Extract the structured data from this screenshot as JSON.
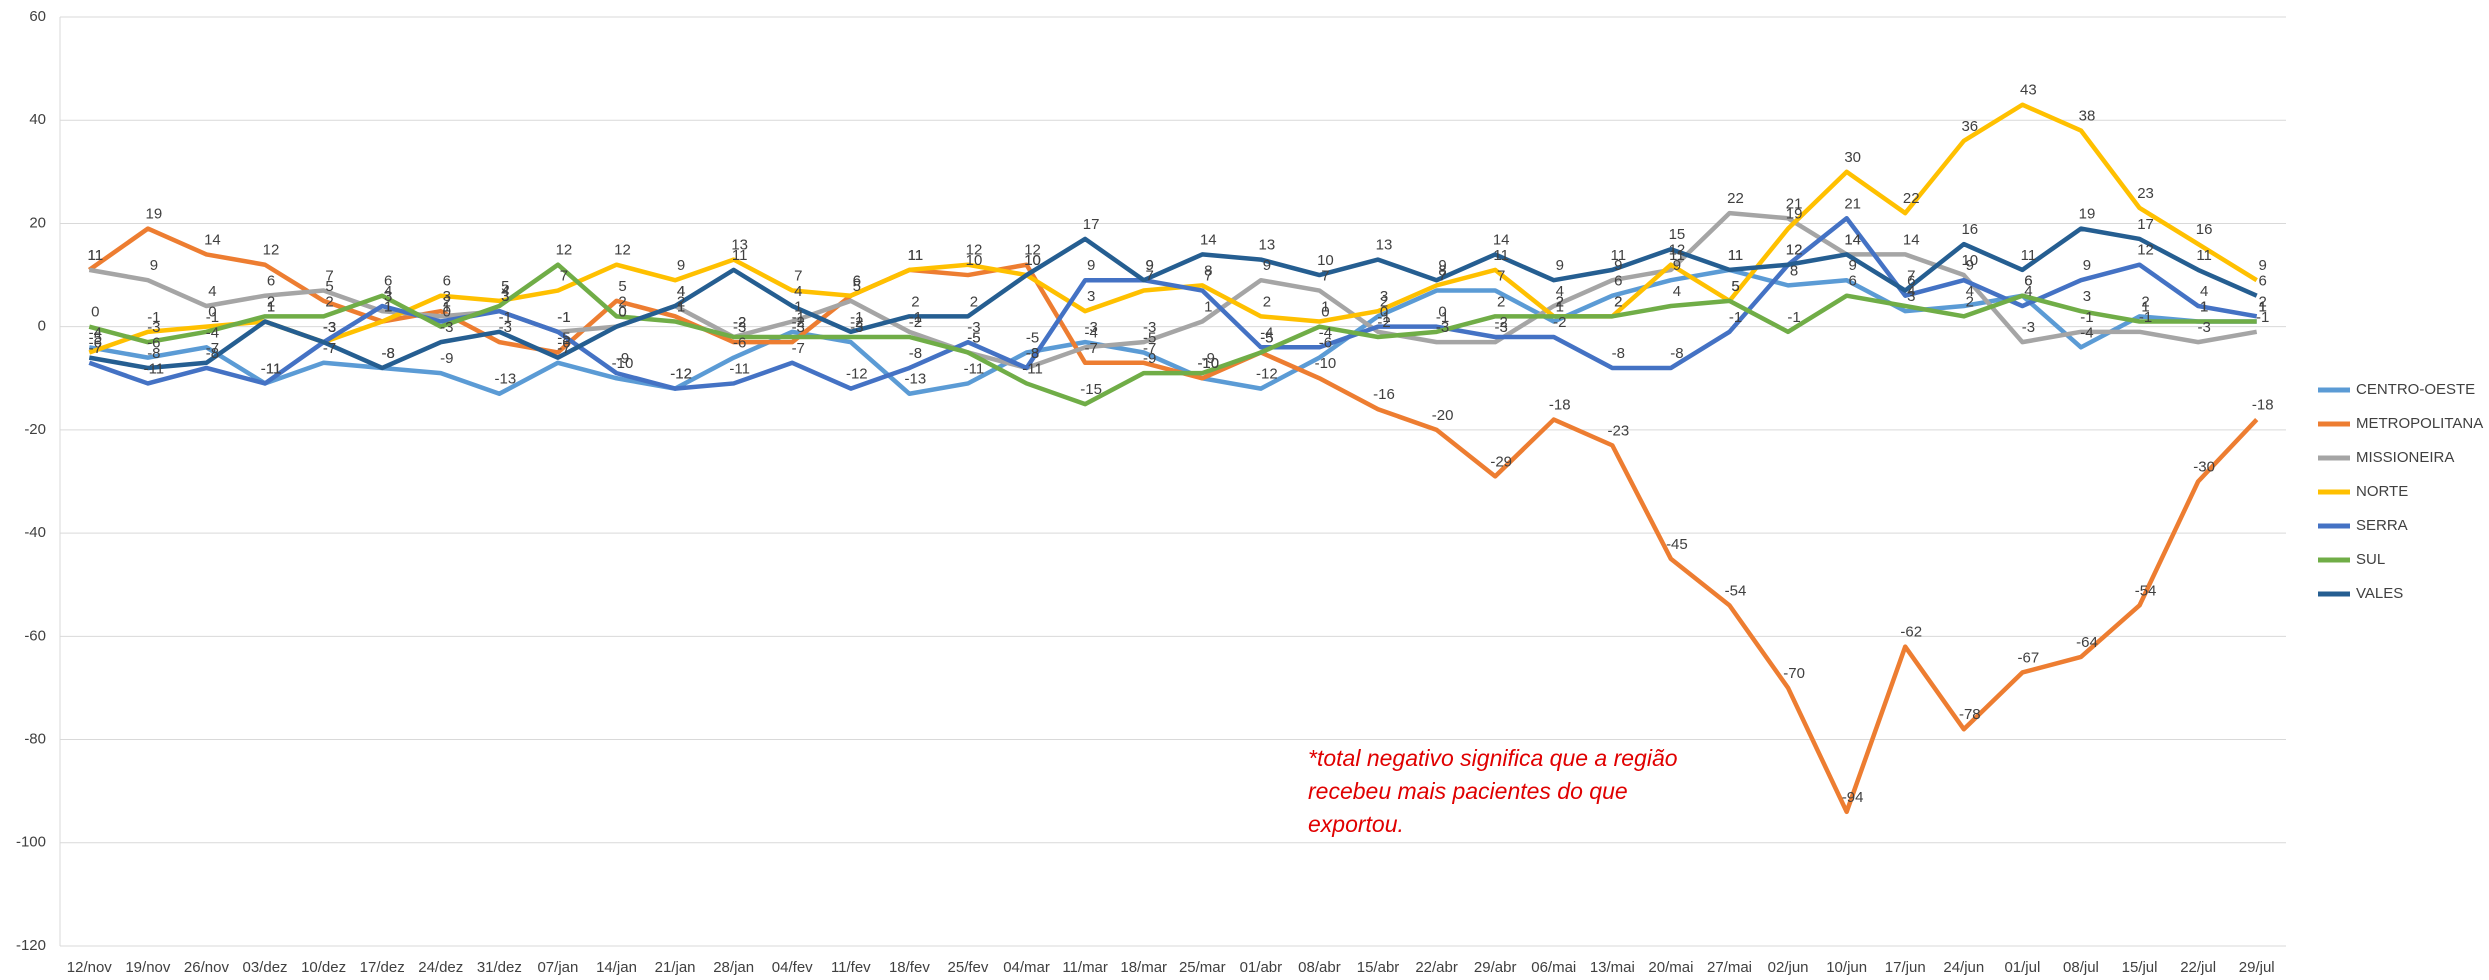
{
  "chart_data": {
    "type": "line",
    "categories": [
      "12/nov",
      "19/nov",
      "26/nov",
      "03/dez",
      "10/dez",
      "17/dez",
      "24/dez",
      "31/dez",
      "07/jan",
      "14/jan",
      "21/jan",
      "28/jan",
      "04/fev",
      "11/fev",
      "18/fev",
      "25/fev",
      "04/mar",
      "11/mar",
      "18/mar",
      "25/mar",
      "01/abr",
      "08/abr",
      "15/abr",
      "22/abr",
      "29/abr",
      "06/mai",
      "13/mai",
      "20/mai",
      "27/mai",
      "02/jun",
      "10/jun",
      "17/jun",
      "24/jun",
      "01/jul",
      "08/jul",
      "15/jul",
      "22/jul",
      "29/jul"
    ],
    "series": [
      {
        "name": "CENTRO-OESTE",
        "color": "#5b9bd5",
        "values": [
          -4,
          -6,
          -4,
          -11,
          -7,
          -8,
          -9,
          -13,
          -7,
          -10,
          -12,
          -6,
          -1,
          -3,
          -13,
          -11,
          -5,
          -3,
          -5,
          -10,
          -12,
          -6,
          2,
          7,
          7,
          1,
          6,
          9,
          11,
          8,
          9,
          3,
          4,
          6,
          -4,
          2,
          1,
          1
        ]
      },
      {
        "name": "METROPOLITANA",
        "color": "#ed7d31",
        "values": [
          11,
          19,
          14,
          12,
          5,
          1,
          3,
          -3,
          -5,
          5,
          2,
          -3,
          -3,
          6,
          11,
          10,
          12,
          -7,
          -7,
          -10,
          -5,
          -10,
          -16,
          -20,
          -29,
          -18,
          -23,
          -45,
          -54,
          -70,
          -94,
          -62,
          -78,
          -67,
          -64,
          -54,
          -30,
          -18
        ]
      },
      {
        "name": "MISSIONEIRA",
        "color": "#a5a5a5",
        "values": [
          11,
          9,
          4,
          6,
          7,
          3,
          2,
          3,
          -1,
          0,
          4,
          -2,
          1,
          5,
          -1,
          -5,
          -8,
          -4,
          -3,
          1,
          9,
          7,
          -1,
          -3,
          -3,
          4,
          9,
          11,
          22,
          21,
          14,
          14,
          10,
          -3,
          -1,
          -1,
          -3,
          -1
        ]
      },
      {
        "name": "NORTE",
        "color": "#ffc000",
        "values": [
          -5,
          -1,
          0,
          1,
          -3,
          1,
          6,
          5,
          7,
          12,
          9,
          13,
          7,
          6,
          11,
          12,
          10,
          3,
          7,
          8,
          2,
          1,
          3,
          8,
          11,
          2,
          2,
          12,
          5,
          19,
          30,
          22,
          36,
          43,
          38,
          23,
          16,
          9
        ]
      },
      {
        "name": "SERRA",
        "color": "#4472c4",
        "values": [
          -7,
          -11,
          -8,
          -11,
          -3,
          4,
          1,
          3,
          -1,
          -9,
          -12,
          -11,
          -7,
          -12,
          -8,
          -3,
          -8,
          9,
          9,
          7,
          -4,
          -4,
          0,
          0,
          -2,
          -2,
          -8,
          -8,
          -1,
          12,
          21,
          6,
          9,
          4,
          9,
          12,
          4,
          2
        ]
      },
      {
        "name": "SUL",
        "color": "#70ad47",
        "values": [
          0,
          -3,
          -1,
          2,
          2,
          6,
          0,
          4,
          12,
          2,
          1,
          -2,
          -2,
          -2,
          -2,
          -5,
          -11,
          -15,
          -9,
          -9,
          -5,
          0,
          -2,
          -1,
          2,
          2,
          2,
          4,
          5,
          -1,
          6,
          4,
          2,
          6,
          3,
          1,
          1,
          1
        ]
      },
      {
        "name": "VALES",
        "color": "#255e91",
        "values": [
          -6,
          -8,
          -7,
          1,
          -3,
          -8,
          -3,
          -1,
          -6,
          0,
          4,
          11,
          4,
          -1,
          2,
          2,
          10,
          17,
          9,
          14,
          13,
          10,
          13,
          9,
          14,
          9,
          11,
          15,
          11,
          12,
          14,
          7,
          16,
          11,
          19,
          17,
          11,
          6
        ]
      }
    ],
    "ylim": [
      -120,
      60
    ],
    "yticks": [
      -120,
      -100,
      -80,
      -60,
      -40,
      -20,
      0,
      20,
      40,
      60
    ],
    "grid": true,
    "annotation": [
      "*total negativo significa que a região",
      " recebeu mais pacientes do que",
      "exportou."
    ]
  }
}
